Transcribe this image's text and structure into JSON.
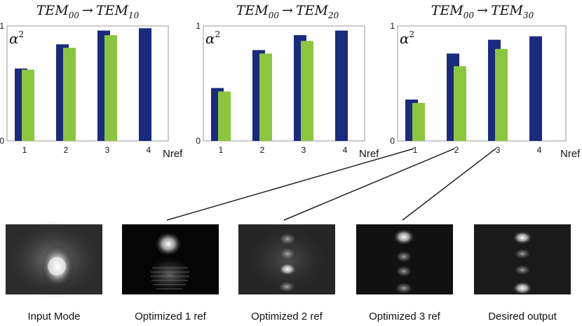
{
  "chart_data": [
    {
      "type": "bar",
      "title": "TEM00 → TEM10",
      "title_parts": {
        "a": "TEM",
        "a_sub": "00",
        "arrow": "→",
        "b": "TEM",
        "b_sub": "10"
      },
      "ylabel": "α²",
      "ylabel_parts": {
        "base": "α",
        "sup": "2"
      },
      "xlabel": "Nref",
      "categories": [
        "1",
        "2",
        "3",
        "4"
      ],
      "yticks": [
        "0",
        "1"
      ],
      "ylim": [
        0,
        1
      ],
      "series": [
        {
          "name": "blue",
          "color": "#1b2a7e",
          "values": [
            0.63,
            0.84,
            0.96,
            0.98
          ]
        },
        {
          "name": "green",
          "color": "#8cc63f",
          "values": [
            0.62,
            0.81,
            0.92,
            null
          ]
        }
      ]
    },
    {
      "type": "bar",
      "title": "TEM00 → TEM20",
      "title_parts": {
        "a": "TEM",
        "a_sub": "00",
        "arrow": "→",
        "b": "TEM",
        "b_sub": "20"
      },
      "ylabel": "α²",
      "ylabel_parts": {
        "base": "α",
        "sup": "2"
      },
      "xlabel": "Nref",
      "categories": [
        "1",
        "2",
        "3",
        "4"
      ],
      "yticks": [
        "0",
        "1"
      ],
      "ylim": [
        0,
        1
      ],
      "series": [
        {
          "name": "blue",
          "color": "#1b2a7e",
          "values": [
            0.46,
            0.79,
            0.92,
            0.96
          ]
        },
        {
          "name": "green",
          "color": "#8cc63f",
          "values": [
            0.43,
            0.76,
            0.87,
            null
          ]
        }
      ]
    },
    {
      "type": "bar",
      "title": "TEM00 → TEM30",
      "title_parts": {
        "a": "TEM",
        "a_sub": "00",
        "arrow": "→",
        "b": "TEM",
        "b_sub": "30"
      },
      "ylabel": "α²",
      "ylabel_parts": {
        "base": "α",
        "sup": "2"
      },
      "xlabel": "Nref",
      "categories": [
        "1",
        "2",
        "3",
        "4"
      ],
      "yticks": [
        "0",
        "1"
      ],
      "ylim": [
        0,
        1
      ],
      "series": [
        {
          "name": "blue",
          "color": "#1b2a7e",
          "values": [
            0.36,
            0.76,
            0.88,
            0.91
          ]
        },
        {
          "name": "green",
          "color": "#8cc63f",
          "values": [
            0.33,
            0.65,
            0.8,
            null
          ]
        }
      ]
    }
  ],
  "images": [
    {
      "caption": "Input Mode",
      "pattern": "input-mode"
    },
    {
      "caption": "Optimized 1 ref",
      "pattern": "optimized-1-ref"
    },
    {
      "caption": "Optimized 2 ref",
      "pattern": "optimized-2-ref"
    },
    {
      "caption": "Optimized 3 ref",
      "pattern": "optimized-3-ref"
    },
    {
      "caption": "Desired output",
      "pattern": "desired-output"
    }
  ],
  "colors": {
    "blue_bar": "#1b2a7e",
    "green_bar": "#8cc63f",
    "axis": "#9a9a9a",
    "connector": "#222222"
  }
}
